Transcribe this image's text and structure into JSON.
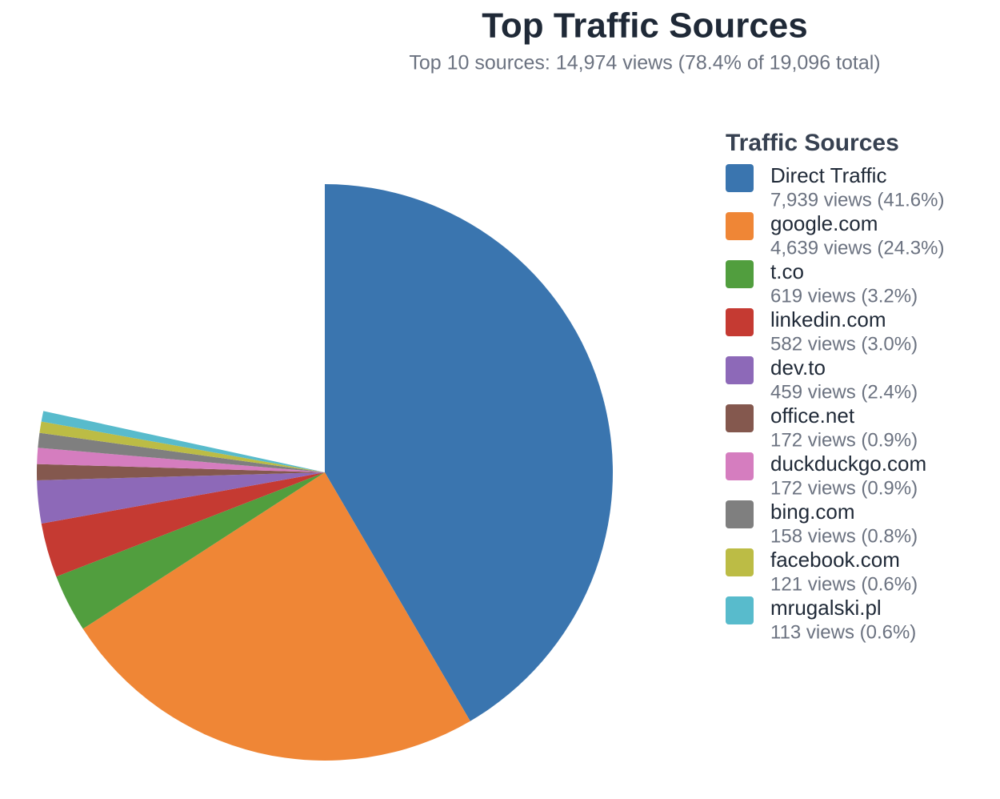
{
  "chart_data": {
    "type": "pie",
    "title": "Top Traffic Sources",
    "subtitle": "Top 10 sources: 14,974 views (78.4% of 19,096 total)",
    "legend_title": "Traffic Sources",
    "total": 19096,
    "categories": [
      "Direct Traffic",
      "google.com",
      "t.co",
      "linkedin.com",
      "dev.to",
      "office.net",
      "duckduckgo.com",
      "bing.com",
      "facebook.com",
      "mrugalski.pl"
    ],
    "values": [
      7939,
      4639,
      619,
      582,
      459,
      172,
      172,
      158,
      121,
      113
    ],
    "value_labels": [
      "7,939 views (41.6%)",
      "4,639 views (24.3%)",
      "619 views (3.2%)",
      "582 views (3.0%)",
      "459 views (2.4%)",
      "172 views (0.9%)",
      "172 views (0.9%)",
      "158 views (0.8%)",
      "121 views (0.6%)",
      "113 views (0.6%)"
    ],
    "colors": [
      "#3a75af",
      "#ef8636",
      "#519e3e",
      "#c53a32",
      "#8d69b8",
      "#84584e",
      "#d57dbf",
      "#7f7f7f",
      "#bcbc45",
      "#58bbcc"
    ],
    "legend": "right"
  }
}
